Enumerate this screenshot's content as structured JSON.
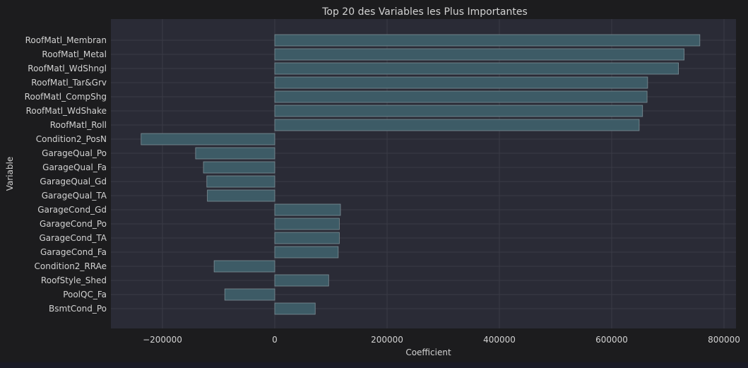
{
  "chart_data": {
    "type": "bar",
    "orientation": "horizontal",
    "title": "Top 20 des Variables les Plus Importantes",
    "xlabel": "Coefficient",
    "ylabel": "Variable",
    "categories": [
      "RoofMatl_Membran",
      "RoofMatl_Metal",
      "RoofMatl_WdShngl",
      "RoofMatl_Tar&Grv",
      "RoofMatl_CompShg",
      "RoofMatl_WdShake",
      "RoofMatl_Roll",
      "Condition2_PosN",
      "GarageQual_Po",
      "GarageQual_Fa",
      "GarageQual_Gd",
      "GarageQual_TA",
      "GarageCond_Gd",
      "GarageCond_Po",
      "GarageCond_TA",
      "GarageCond_Fa",
      "Condition2_RRAe",
      "RoofStyle_Shed",
      "PoolQC_Fa",
      "BsmtCond_Po"
    ],
    "values": [
      757000,
      729000,
      719000,
      664000,
      663000,
      655000,
      649000,
      -238000,
      -141000,
      -127000,
      -121000,
      -120000,
      117000,
      115000,
      115000,
      113000,
      -108000,
      96000,
      -89000,
      72000
    ],
    "xticks": [
      -200000,
      0,
      200000,
      400000,
      600000,
      800000
    ],
    "xtick_labels": [
      "−200000",
      "0",
      "200000",
      "400000",
      "600000",
      "800000"
    ],
    "xlim": [
      -290000,
      805000
    ],
    "grid": true,
    "colors": {
      "bar": "#3d5b66",
      "bar_edge": "#7d8f96",
      "plot_bg": "#2a2b36",
      "figure_bg": "#1c1c1e",
      "grid": "#3a3b46",
      "text": "#d2d2d2"
    }
  }
}
